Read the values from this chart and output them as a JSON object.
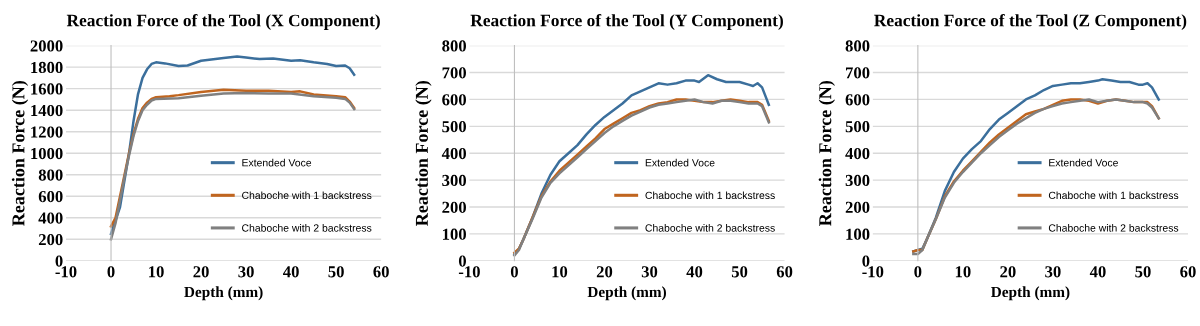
{
  "chart_data": [
    {
      "type": "line",
      "title": "Reaction Force of the Tool (X Component)",
      "xlabel": "Depth (mm)",
      "ylabel": "Reaction Force (N)",
      "xlim": [
        -10,
        60
      ],
      "xticks": [
        -10,
        0,
        10,
        20,
        30,
        40,
        50,
        60
      ],
      "ylim": [
        0,
        2000
      ],
      "yticks": [
        0,
        200,
        400,
        600,
        800,
        1000,
        1200,
        1400,
        1600,
        1800,
        2000
      ],
      "grid": "y",
      "legend": "right",
      "marker": "none",
      "line_style": "solid",
      "series": [
        {
          "name": "Extended Voce",
          "color": "#3b6f9c",
          "x": [
            0,
            2,
            4,
            5,
            6,
            7,
            8,
            9,
            10,
            12,
            15,
            17,
            20,
            25,
            28,
            30,
            33,
            36,
            40,
            42,
            45,
            48,
            50,
            52,
            53,
            54
          ],
          "values": [
            250,
            500,
            1000,
            1300,
            1550,
            1700,
            1780,
            1830,
            1845,
            1835,
            1810,
            1815,
            1860,
            1885,
            1900,
            1890,
            1875,
            1880,
            1860,
            1865,
            1845,
            1830,
            1810,
            1815,
            1790,
            1730
          ]
        },
        {
          "name": "Chaboche with 1 backstress",
          "color": "#c0651f",
          "x": [
            0,
            1,
            2,
            3,
            4,
            5,
            6,
            7,
            8,
            9,
            10,
            13,
            15,
            20,
            25,
            30,
            35,
            40,
            42,
            45,
            50,
            52,
            53,
            54
          ],
          "values": [
            320,
            400,
            600,
            800,
            1000,
            1180,
            1320,
            1420,
            1470,
            1505,
            1520,
            1530,
            1540,
            1570,
            1590,
            1580,
            1580,
            1570,
            1575,
            1545,
            1530,
            1520,
            1480,
            1420
          ]
        },
        {
          "name": "Chaboche with 2 backstress",
          "color": "#808080",
          "x": [
            0,
            1,
            2,
            3,
            4,
            5,
            6,
            7,
            8,
            9,
            10,
            15,
            20,
            25,
            30,
            35,
            40,
            45,
            50,
            52,
            53,
            54
          ],
          "values": [
            200,
            350,
            560,
            780,
            980,
            1160,
            1300,
            1400,
            1450,
            1490,
            1505,
            1510,
            1535,
            1555,
            1560,
            1555,
            1555,
            1530,
            1515,
            1505,
            1470,
            1410
          ]
        }
      ]
    },
    {
      "type": "line",
      "title": "Reaction Force of the Tool (Y Component)",
      "xlabel": "Depth (mm)",
      "ylabel": "Reaction Force (N)",
      "xlim": [
        -10,
        60
      ],
      "xticks": [
        -10,
        0,
        10,
        20,
        30,
        40,
        50,
        60
      ],
      "ylim": [
        0,
        800
      ],
      "yticks": [
        0,
        100,
        200,
        300,
        400,
        500,
        600,
        700,
        800
      ],
      "grid": "y",
      "legend": "right",
      "marker": "none",
      "line_style": "solid",
      "series": [
        {
          "name": "Extended Voce",
          "color": "#3b6f9c",
          "x": [
            0,
            1,
            2,
            4,
            6,
            8,
            10,
            12,
            14,
            16,
            18,
            20,
            22,
            24,
            26,
            28,
            30,
            32,
            34,
            36,
            38,
            40,
            41,
            43,
            45,
            47,
            50,
            52,
            53,
            54,
            55,
            56.5
          ],
          "values": [
            25,
            45,
            80,
            160,
            250,
            320,
            370,
            400,
            430,
            470,
            505,
            535,
            560,
            585,
            615,
            630,
            645,
            660,
            655,
            660,
            670,
            670,
            665,
            690,
            675,
            665,
            665,
            655,
            650,
            660,
            645,
            580
          ]
        },
        {
          "name": "Chaboche with 1 backstress",
          "color": "#c0651f",
          "x": [
            0,
            1,
            2,
            4,
            6,
            8,
            10,
            12,
            14,
            16,
            18,
            20,
            22,
            24,
            26,
            28,
            30,
            32,
            34,
            36,
            38,
            40,
            42,
            44,
            46,
            48,
            50,
            52,
            54,
            55,
            56.5
          ],
          "values": [
            30,
            45,
            80,
            160,
            240,
            295,
            335,
            365,
            395,
            425,
            455,
            490,
            510,
            530,
            550,
            560,
            575,
            585,
            590,
            600,
            600,
            595,
            590,
            590,
            595,
            600,
            595,
            590,
            590,
            580,
            520
          ]
        },
        {
          "name": "Chaboche with 2 backstress",
          "color": "#808080",
          "x": [
            0,
            1,
            2,
            4,
            6,
            8,
            10,
            12,
            14,
            16,
            18,
            20,
            22,
            24,
            26,
            28,
            30,
            32,
            34,
            36,
            38,
            40,
            42,
            44,
            46,
            48,
            50,
            52,
            54,
            55,
            56.5
          ],
          "values": [
            20,
            40,
            80,
            155,
            235,
            290,
            325,
            355,
            385,
            415,
            445,
            475,
            500,
            520,
            540,
            555,
            570,
            580,
            585,
            590,
            595,
            600,
            590,
            585,
            595,
            595,
            590,
            585,
            585,
            575,
            515
          ]
        }
      ]
    },
    {
      "type": "line",
      "title": "Reaction Force of the Tool (Z Component)",
      "xlabel": "Depth (mm)",
      "ylabel": "Reaction Force (N)",
      "xlim": [
        -10,
        60
      ],
      "xticks": [
        -10,
        0,
        10,
        20,
        30,
        40,
        50,
        60
      ],
      "ylim": [
        0,
        800
      ],
      "yticks": [
        0,
        100,
        200,
        300,
        400,
        500,
        600,
        700,
        800
      ],
      "grid": "y",
      "legend": "right",
      "marker": "none",
      "line_style": "solid",
      "series": [
        {
          "name": "Extended Voce",
          "color": "#3b6f9c",
          "x": [
            -1,
            0,
            1,
            2,
            4,
            6,
            8,
            10,
            12,
            14,
            16,
            18,
            20,
            22,
            24,
            26,
            28,
            30,
            32,
            34,
            36,
            38,
            40,
            41,
            43,
            45,
            47,
            49,
            50,
            51,
            52,
            53.5
          ],
          "values": [
            35,
            40,
            45,
            80,
            160,
            260,
            330,
            380,
            415,
            445,
            490,
            525,
            550,
            575,
            600,
            615,
            635,
            650,
            655,
            660,
            660,
            665,
            670,
            675,
            670,
            665,
            665,
            655,
            655,
            660,
            645,
            600
          ]
        },
        {
          "name": "Chaboche with 1 backstress",
          "color": "#c0651f",
          "x": [
            -1,
            0,
            1,
            2,
            4,
            6,
            8,
            10,
            12,
            14,
            16,
            18,
            20,
            22,
            24,
            26,
            28,
            30,
            32,
            34,
            36,
            38,
            40,
            42,
            44,
            46,
            48,
            50,
            51,
            52,
            53.5
          ],
          "values": [
            35,
            40,
            40,
            80,
            155,
            240,
            295,
            335,
            370,
            405,
            440,
            470,
            495,
            520,
            545,
            555,
            565,
            580,
            595,
            600,
            600,
            595,
            585,
            595,
            600,
            595,
            590,
            590,
            590,
            575,
            530
          ]
        },
        {
          "name": "Chaboche with 2 backstress",
          "color": "#808080",
          "x": [
            -1,
            0,
            1,
            2,
            4,
            6,
            8,
            10,
            12,
            14,
            16,
            18,
            20,
            22,
            24,
            26,
            28,
            30,
            32,
            34,
            36,
            38,
            40,
            42,
            44,
            46,
            48,
            50,
            51,
            52,
            53.5
          ],
          "values": [
            25,
            25,
            40,
            80,
            155,
            235,
            290,
            330,
            365,
            400,
            430,
            460,
            485,
            510,
            530,
            550,
            565,
            575,
            585,
            590,
            595,
            600,
            590,
            595,
            600,
            595,
            590,
            590,
            585,
            570,
            530
          ]
        }
      ]
    }
  ]
}
